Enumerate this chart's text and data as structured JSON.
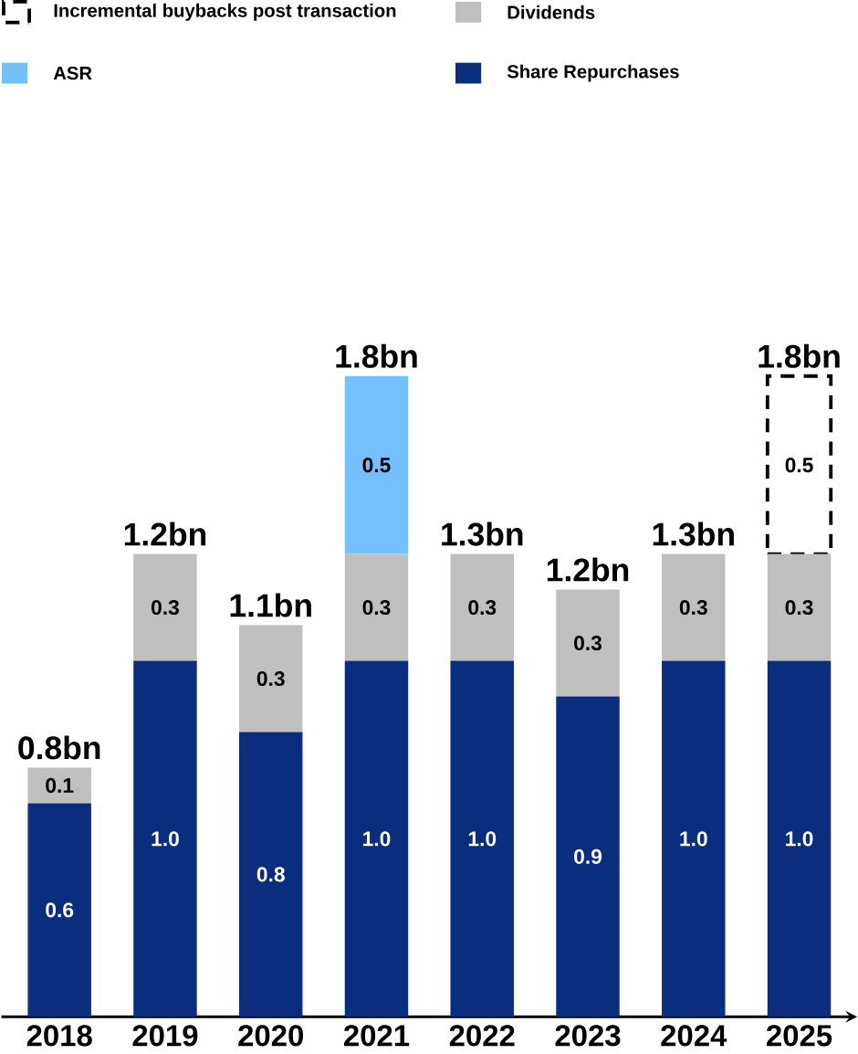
{
  "chart_data": {
    "type": "bar",
    "stacked": true,
    "legend": "top",
    "categories": [
      "2018",
      "2019",
      "2020",
      "2021",
      "2022",
      "2023",
      "2024",
      "2025"
    ],
    "series": [
      {
        "name": "Share Repurchases",
        "color": "#0b2d7d",
        "values": [
          0.6,
          1.0,
          0.8,
          1.0,
          1.0,
          0.9,
          1.0,
          1.0
        ],
        "value_labels": [
          "0.6",
          "1.0",
          "0.8",
          "1.0",
          "1.0",
          "0.9",
          "1.0",
          "1.0"
        ]
      },
      {
        "name": "Dividends",
        "color": "#bfbfbf",
        "values": [
          0.1,
          0.3,
          0.3,
          0.3,
          0.3,
          0.3,
          0.3,
          0.3
        ],
        "value_labels": [
          "0.1",
          "0.3",
          "0.3",
          "0.3",
          "0.3",
          "0.3",
          "0.3",
          "0.3"
        ]
      },
      {
        "name": "ASR",
        "color": "#75c1ff",
        "values": [
          null,
          null,
          null,
          0.5,
          null,
          null,
          null,
          null
        ],
        "value_labels": [
          null,
          null,
          null,
          "0.5",
          null,
          null,
          null,
          null
        ]
      },
      {
        "name": "Incremental buybacks post transaction",
        "color": "#ffffff",
        "line_style": "dashed",
        "values": [
          null,
          null,
          null,
          null,
          null,
          null,
          null,
          0.5
        ],
        "value_labels": [
          null,
          null,
          null,
          null,
          null,
          null,
          null,
          "0.5"
        ]
      }
    ],
    "totals": [
      "0.8bn",
      "1.2bn",
      "1.1bn",
      "1.8bn",
      "1.3bn",
      "1.2bn",
      "1.3bn",
      "1.8bn"
    ]
  }
}
